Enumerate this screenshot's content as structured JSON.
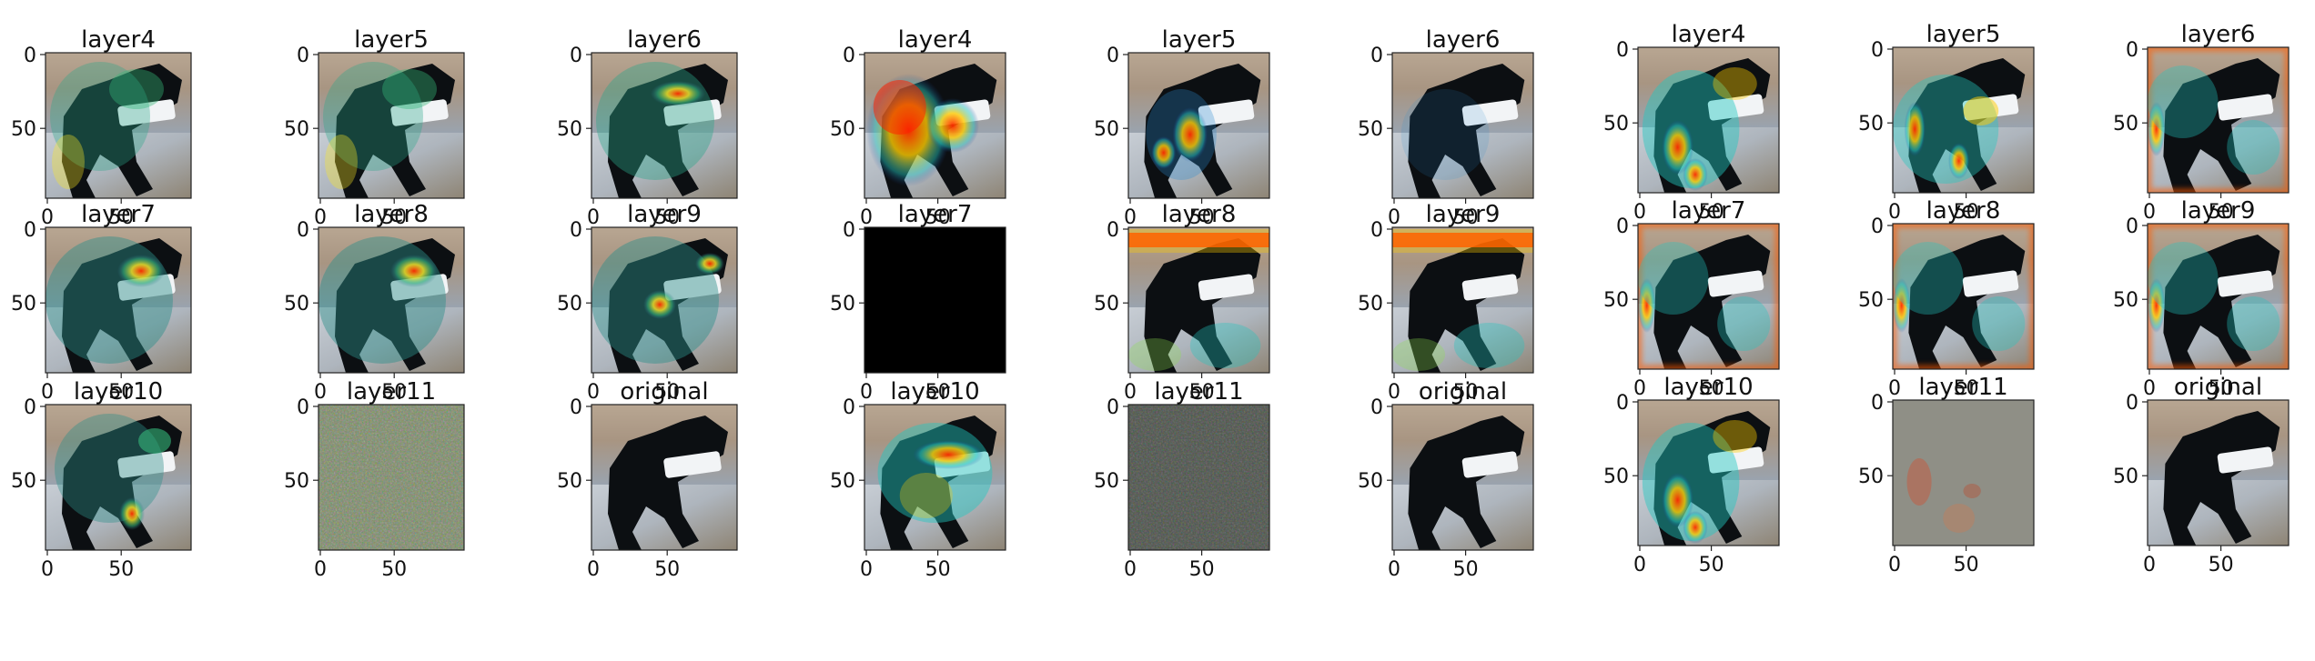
{
  "chart_data": {
    "type": "image-grid",
    "panel_groups": [
      {
        "name": "",
        "panels": [
          {
            "title": "layer4",
            "overlay": "viridis-light",
            "x_ticks": [
              "0",
              "50"
            ],
            "y_ticks": [
              "0",
              "50"
            ]
          },
          {
            "title": "layer5",
            "overlay": "viridis-light",
            "x_ticks": [
              "0",
              "50"
            ],
            "y_ticks": [
              "0",
              "50"
            ]
          },
          {
            "title": "layer6",
            "overlay": "viridis-hot-center",
            "x_ticks": [
              "0",
              "50"
            ],
            "y_ticks": [
              "0",
              "50"
            ]
          },
          {
            "title": "layer7",
            "overlay": "viridis-hot-head",
            "x_ticks": [
              "0",
              "50"
            ],
            "y_ticks": [
              "0",
              "50"
            ]
          },
          {
            "title": "layer8",
            "overlay": "viridis-hot-head",
            "x_ticks": [
              "0",
              "50"
            ],
            "y_ticks": [
              "0",
              "50"
            ]
          },
          {
            "title": "layer9",
            "overlay": "viridis-spots",
            "x_ticks": [
              "0",
              "50"
            ],
            "y_ticks": [
              "0",
              "50"
            ]
          },
          {
            "title": "layer10",
            "overlay": "viridis-hot-legs",
            "x_ticks": [
              "0",
              "50"
            ],
            "y_ticks": [
              "0",
              "50"
            ]
          },
          {
            "title": "layer11",
            "overlay": "noise-green",
            "x_ticks": [
              "0",
              "50"
            ],
            "y_ticks": [
              "0",
              "50"
            ]
          },
          {
            "title": "original",
            "overlay": "none",
            "x_ticks": [
              "0",
              "50"
            ],
            "y_ticks": [
              "0",
              "50"
            ]
          }
        ]
      },
      {
        "name": "",
        "panels": [
          {
            "title": "layer4",
            "overlay": "jet-strong",
            "x_ticks": [
              "0",
              "50"
            ],
            "y_ticks": [
              "0",
              "50"
            ]
          },
          {
            "title": "layer5",
            "overlay": "jet-speckle",
            "x_ticks": [
              "0",
              "50"
            ],
            "y_ticks": [
              "0",
              "50"
            ]
          },
          {
            "title": "layer6",
            "overlay": "jet-faint",
            "x_ticks": [
              "0",
              "50"
            ],
            "y_ticks": [
              "0",
              "50"
            ]
          },
          {
            "title": "layer7",
            "overlay": "black",
            "x_ticks": [
              "0",
              "50"
            ],
            "y_ticks": [
              "0",
              "50"
            ]
          },
          {
            "title": "layer8",
            "overlay": "jet-top-band",
            "x_ticks": [
              "0",
              "50"
            ],
            "y_ticks": [
              "0",
              "50"
            ]
          },
          {
            "title": "layer9",
            "overlay": "jet-top-band",
            "x_ticks": [
              "0",
              "50"
            ],
            "y_ticks": [
              "0",
              "50"
            ]
          },
          {
            "title": "layer10",
            "overlay": "jet-center",
            "x_ticks": [
              "0",
              "50"
            ],
            "y_ticks": [
              "0",
              "50"
            ]
          },
          {
            "title": "layer11",
            "overlay": "noise-dark",
            "x_ticks": [
              "0",
              "50"
            ],
            "y_ticks": [
              "0",
              "50"
            ]
          },
          {
            "title": "original",
            "overlay": "none",
            "x_ticks": [
              "0",
              "50"
            ],
            "y_ticks": [
              "0",
              "50"
            ]
          }
        ]
      },
      {
        "name": "",
        "panels": [
          {
            "title": "layer4",
            "overlay": "jet-body",
            "x_ticks": [
              "0",
              "50"
            ],
            "y_ticks": [
              "0",
              "50"
            ]
          },
          {
            "title": "layer5",
            "overlay": "jet-legs",
            "x_ticks": [
              "0",
              "50"
            ],
            "y_ticks": [
              "0",
              "50"
            ]
          },
          {
            "title": "layer6",
            "overlay": "jet-border",
            "x_ticks": [
              "0",
              "50"
            ],
            "y_ticks": [
              "0",
              "50"
            ]
          },
          {
            "title": "layer7",
            "overlay": "jet-border",
            "x_ticks": [
              "0",
              "50"
            ],
            "y_ticks": [
              "0",
              "50"
            ]
          },
          {
            "title": "layer8",
            "overlay": "jet-border",
            "x_ticks": [
              "0",
              "50"
            ],
            "y_ticks": [
              "0",
              "50"
            ]
          },
          {
            "title": "layer9",
            "overlay": "jet-border",
            "x_ticks": [
              "0",
              "50"
            ],
            "y_ticks": [
              "0",
              "50"
            ]
          },
          {
            "title": "layer10",
            "overlay": "jet-body",
            "x_ticks": [
              "0",
              "50"
            ],
            "y_ticks": [
              "0",
              "50"
            ]
          },
          {
            "title": "layer11",
            "overlay": "noise-gray",
            "x_ticks": [
              "0",
              "50"
            ],
            "y_ticks": [
              "0",
              "50"
            ]
          },
          {
            "title": "original",
            "overlay": "none",
            "x_ticks": [
              "0",
              "50"
            ],
            "y_ticks": [
              "0",
              "50"
            ]
          }
        ]
      }
    ]
  }
}
